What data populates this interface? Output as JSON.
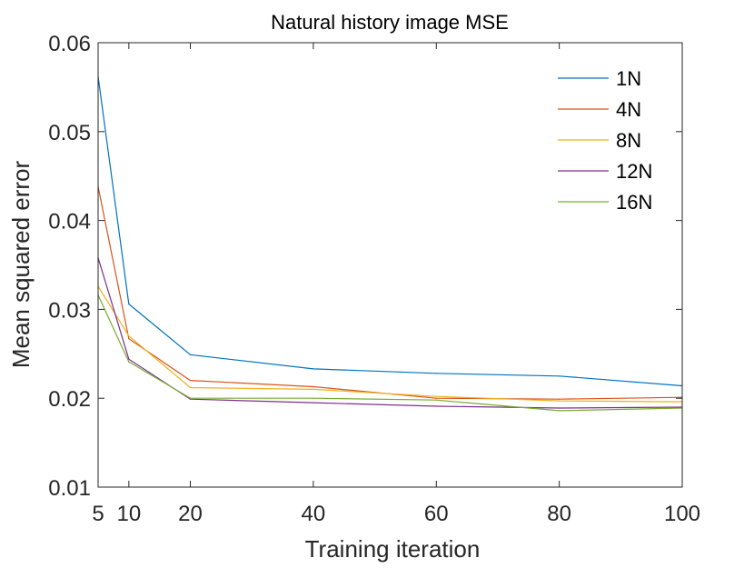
{
  "chart_data": {
    "type": "line",
    "title": "Natural history image MSE",
    "xlabel": "Training iteration",
    "ylabel": "Mean squared error",
    "x": [
      5,
      10,
      20,
      40,
      60,
      80,
      100
    ],
    "xticks": [
      5,
      10,
      20,
      40,
      60,
      80,
      100
    ],
    "xtick_labels": [
      "5",
      "10",
      "20",
      "40",
      "60",
      "80",
      "100"
    ],
    "yticks": [
      0.01,
      0.02,
      0.03,
      0.04,
      0.05,
      0.06
    ],
    "ytick_labels": [
      "0.01",
      "0.02",
      "0.03",
      "0.04",
      "0.05",
      "0.06"
    ],
    "xlim": [
      5,
      100
    ],
    "ylim": [
      0.01,
      0.06
    ],
    "grid": false,
    "legend_position": "top-right",
    "series": [
      {
        "name": "1N",
        "color": "#0072BD",
        "values": [
          0.0562,
          0.0306,
          0.0249,
          0.0233,
          0.0228,
          0.0225,
          0.0214
        ]
      },
      {
        "name": "4N",
        "color": "#D95319",
        "values": [
          0.0438,
          0.0267,
          0.022,
          0.0213,
          0.02,
          0.0199,
          0.0201
        ]
      },
      {
        "name": "8N",
        "color": "#EDB120",
        "values": [
          0.0326,
          0.027,
          0.0212,
          0.021,
          0.0202,
          0.0197,
          0.0196
        ]
      },
      {
        "name": "12N",
        "color": "#7E2F8E",
        "values": [
          0.0358,
          0.0244,
          0.0199,
          0.0195,
          0.0191,
          0.0189,
          0.019
        ]
      },
      {
        "name": "16N",
        "color": "#77AC30",
        "values": [
          0.0316,
          0.0241,
          0.02,
          0.02,
          0.0198,
          0.0186,
          0.0189
        ]
      }
    ]
  }
}
